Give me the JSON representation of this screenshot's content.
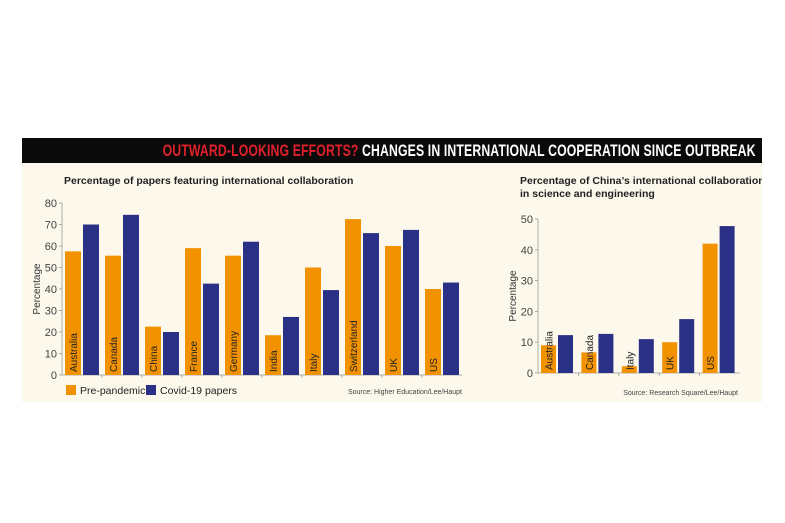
{
  "banner": {
    "highlight": "OUTWARD-LOOKING EFFORTS?",
    "rest": " CHANGES IN INTERNATIONAL COOPERATION SINCE OUTBREAK"
  },
  "colors": {
    "pre": "#f39200",
    "covid": "#2b3087",
    "banner_bg": "#0a0a0a",
    "highlight": "#e0202a",
    "panel": "#fdf8ec"
  },
  "chart_data": [
    {
      "type": "bar",
      "title": "Percentage of papers featuring international collaboration",
      "ylabel": "Percentage",
      "xlabel": "",
      "ylim": [
        0,
        80
      ],
      "yticks": [
        0,
        10,
        20,
        30,
        40,
        50,
        60,
        70,
        80
      ],
      "categories": [
        "Australia",
        "Canada",
        "China",
        "France",
        "Germany",
        "India",
        "Italy",
        "Switzerland",
        "UK",
        "US"
      ],
      "series": [
        {
          "name": "Pre-pandemic",
          "values": [
            57.5,
            55.5,
            22.5,
            59,
            55.5,
            18.5,
            50,
            72.5,
            60,
            40
          ]
        },
        {
          "name": "Covid-19 papers",
          "values": [
            70,
            74.5,
            20,
            42.5,
            62,
            27,
            39.5,
            66,
            67.5,
            43
          ]
        }
      ],
      "legend": "bottom-left",
      "source": "Source: Higher Education/Lee/Haupt"
    },
    {
      "type": "bar",
      "title": "Percentage of China's international collaborations in science and engineering",
      "title_lines": [
        "Percentage of China’s international collaborations",
        "in science and engineering"
      ],
      "ylabel": "Percentage",
      "xlabel": "",
      "ylim": [
        0,
        50
      ],
      "yticks": [
        0,
        10,
        20,
        30,
        40,
        50
      ],
      "categories": [
        "Australia",
        "Canada",
        "Italy",
        "UK",
        "US"
      ],
      "series": [
        {
          "name": "Pre-pandemic",
          "values": [
            9,
            6.7,
            2.2,
            10,
            42
          ]
        },
        {
          "name": "Covid-19 papers",
          "values": [
            12.3,
            12.7,
            11,
            17.5,
            47.7
          ]
        }
      ],
      "source": "Source: Research Square/Lee/Haupt"
    }
  ]
}
